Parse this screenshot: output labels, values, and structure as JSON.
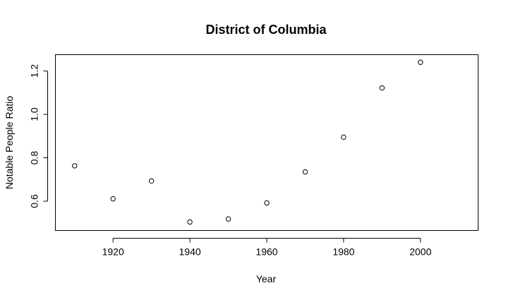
{
  "chart_data": {
    "type": "scatter",
    "title": "District of Columbia",
    "xlabel": "Year",
    "ylabel": "Notable People Ratio",
    "xlim": [
      1905,
      2015
    ],
    "ylim": [
      0.465,
      1.275
    ],
    "xticks": [
      1920,
      1940,
      1960,
      1980,
      2000
    ],
    "yticks": [
      0.6,
      0.8,
      1.0,
      1.2
    ],
    "xtick_labels": [
      "1920",
      "1940",
      "1960",
      "1980",
      "2000"
    ],
    "ytick_labels": [
      "0.6",
      "0.8",
      "1.0",
      "1.2"
    ],
    "grid": false,
    "marker": "open-circle",
    "series": [
      {
        "x": [
          1910,
          1920,
          1930,
          1940,
          1950,
          1960,
          1970,
          1980,
          1990,
          2000
        ],
        "y": [
          0.763,
          0.611,
          0.693,
          0.504,
          0.518,
          0.592,
          0.735,
          0.895,
          1.122,
          1.24
        ]
      }
    ]
  }
}
